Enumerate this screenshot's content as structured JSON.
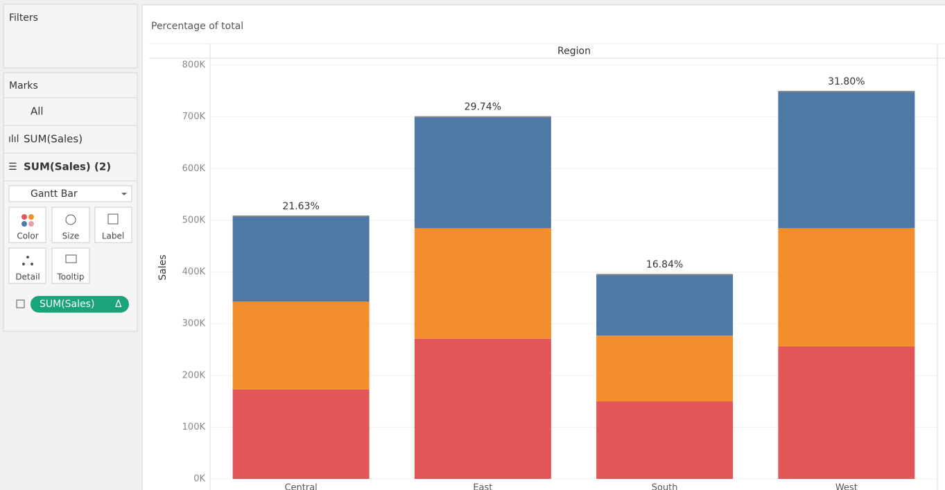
{
  "sidebar": {
    "filters_title": "Filters",
    "marks_title": "Marks",
    "marks_cards": [
      "All",
      "SUM(Sales)",
      "SUM(Sales) (2)"
    ],
    "mark_type": "Gantt Bar",
    "buttons": [
      "Color",
      "Size",
      "Label",
      "Detail",
      "Tooltip"
    ],
    "pill": "SUM(Sales)",
    "pill_flag": "Δ"
  },
  "chart_data": {
    "type": "stacked-bar",
    "title": "Percentage of total",
    "header": "Region",
    "y_label": "Sales",
    "categories": [
      "Central",
      "East",
      "South",
      "West"
    ],
    "series": [
      {
        "color": "#e15759",
        "values": [
          173000,
          271000,
          150000,
          256000
        ]
      },
      {
        "color": "#f28e2b",
        "values": [
          170000,
          214000,
          127000,
          229000
        ]
      },
      {
        "color": "#4e79a7",
        "values": [
          165000,
          215000,
          118000,
          264000
        ]
      }
    ],
    "total_labels": [
      {
        "value": 21.63,
        "label": "21.63%"
      },
      {
        "value": 29.74,
        "label": "29.74%"
      },
      {
        "value": 16.84,
        "label": "16.84%"
      },
      {
        "value": 31.8,
        "label": "31.80%"
      }
    ],
    "ylim": [
      0,
      800000
    ],
    "yticks": [
      {
        "value": 0,
        "label": "0K"
      },
      {
        "value": 100000,
        "label": "100K"
      },
      {
        "value": 200000,
        "label": "200K"
      },
      {
        "value": 300000,
        "label": "300K"
      },
      {
        "value": 400000,
        "label": "400K"
      },
      {
        "value": 500000,
        "label": "500K"
      },
      {
        "value": 600000,
        "label": "600K"
      },
      {
        "value": 700000,
        "label": "700K"
      },
      {
        "value": 800000,
        "label": "800K"
      }
    ],
    "grid": true
  }
}
